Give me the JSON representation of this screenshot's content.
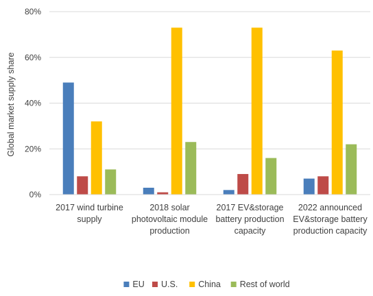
{
  "chart_data": {
    "type": "bar",
    "ylabel": "Global market supply share",
    "ylim": [
      0,
      80
    ],
    "yticks": [
      "0%",
      "20%",
      "40%",
      "60%",
      "80%"
    ],
    "ytick_values": [
      0,
      20,
      40,
      60,
      80
    ],
    "grid": true,
    "legend_position": "bottom",
    "categories": [
      [
        "2017 wind turbine",
        "supply"
      ],
      [
        "2018 solar",
        "photovoltaic module",
        "production"
      ],
      [
        "2017 EV&storage",
        "battery production",
        "capacity"
      ],
      [
        "2022 announced",
        "EV&storage battery",
        "production capacity"
      ]
    ],
    "series": [
      {
        "name": "EU",
        "color": "#4A7EBB",
        "values": [
          49,
          3,
          2,
          7
        ]
      },
      {
        "name": "U.S.",
        "color": "#BE4B48",
        "values": [
          8,
          1,
          9,
          8
        ]
      },
      {
        "name": "China",
        "color": "#FFC000",
        "values": [
          32,
          73,
          73,
          63
        ]
      },
      {
        "name": "Rest of world",
        "color": "#9BBB59",
        "values": [
          11,
          23,
          16,
          22
        ]
      }
    ]
  }
}
